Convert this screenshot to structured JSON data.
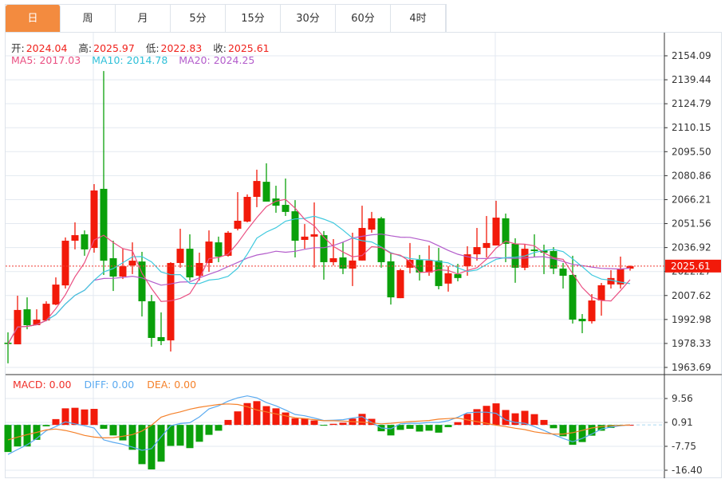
{
  "tabs": [
    "日",
    "周",
    "月",
    "5分",
    "15分",
    "30分",
    "60分",
    "4时"
  ],
  "active_tab": 0,
  "ohlc_header": {
    "open_label": "开:",
    "open": "2024.04",
    "high_label": "高:",
    "high": "2025.97",
    "low_label": "低:",
    "low": "2022.83",
    "close_label": "收:",
    "close": "2025.61"
  },
  "ma_header": {
    "ma5": "MA5: 2017.03",
    "ma10": "MA10: 2014.78",
    "ma20": "MA20: 2024.25"
  },
  "macd_header": {
    "macd": "MACD: 0.00",
    "diff": "DIFF: 0.00",
    "dea": "DEA: 0.00"
  },
  "colors": {
    "up": "#f21a0a",
    "down": "#0aa00a",
    "ma5": "#ea4f82",
    "ma10": "#3fc9de",
    "ma20": "#b35ccb",
    "diff": "#5aaaf0",
    "dea": "#f5812a",
    "accent": "#f38b3f"
  },
  "chart_data": {
    "type": "candlestick",
    "price_axis_ticks": [
      "2154.09",
      "2139.44",
      "2124.79",
      "2110.15",
      "2095.50",
      "2080.86",
      "2066.21",
      "2051.56",
      "2036.92",
      "2022.27",
      "2007.62",
      "1992.98",
      "1978.33",
      "1963.69"
    ],
    "ylim": [
      1963.69,
      2154.09
    ],
    "current_price": "2025.61",
    "candles": [
      [
        1978.8,
        1985.1,
        1966.2,
        1978.0
      ],
      [
        1977.8,
        2007.5,
        1977.8,
        1998.8
      ],
      [
        1999.2,
        2006.5,
        1987.0,
        1989.5
      ],
      [
        1989.5,
        1999.2,
        1989.5,
        1992.9
      ],
      [
        1992.4,
        2004.1,
        1991.9,
        2002.6
      ],
      [
        2002.1,
        2018.7,
        2001.7,
        2014.3
      ],
      [
        2013.8,
        2043.1,
        2011.9,
        2041.1
      ],
      [
        2041.1,
        2052.3,
        2035.8,
        2044.5
      ],
      [
        2045.0,
        2047.4,
        2031.9,
        2035.8
      ],
      [
        2036.7,
        2075.7,
        2033.8,
        2071.8
      ],
      [
        2072.8,
        2144.8,
        2020.2,
        2028.9
      ],
      [
        2030.4,
        2041.1,
        2010.4,
        2019.2
      ],
      [
        2019.2,
        2036.2,
        2017.7,
        2025.5
      ],
      [
        2026.0,
        2040.1,
        2020.7,
        2028.9
      ],
      [
        2028.4,
        2034.3,
        1994.8,
        2004.1
      ],
      [
        2004.1,
        2008.0,
        1976.3,
        1981.7
      ],
      [
        1982.2,
        1997.3,
        1977.3,
        1979.8
      ],
      [
        1980.2,
        2028.0,
        1973.4,
        2027.5
      ],
      [
        2027.5,
        2048.4,
        2024.6,
        2036.2
      ],
      [
        2036.2,
        2045.0,
        2016.8,
        2018.7
      ],
      [
        2019.7,
        2033.8,
        2016.8,
        2027.5
      ],
      [
        2027.5,
        2047.4,
        2022.1,
        2040.6
      ],
      [
        2040.1,
        2043.6,
        2028.0,
        2031.4
      ],
      [
        2031.9,
        2047.0,
        2031.4,
        2046.0
      ],
      [
        2048.4,
        2070.8,
        2047.4,
        2053.3
      ],
      [
        2052.8,
        2069.4,
        2052.3,
        2067.9
      ],
      [
        2067.9,
        2084.5,
        2061.6,
        2077.6
      ],
      [
        2077.1,
        2088.4,
        2065.0,
        2065.0
      ],
      [
        2066.9,
        2074.7,
        2058.2,
        2062.5
      ],
      [
        2063.0,
        2079.1,
        2056.2,
        2058.7
      ],
      [
        2059.1,
        2065.9,
        2030.9,
        2041.1
      ],
      [
        2041.6,
        2051.3,
        2036.2,
        2043.6
      ],
      [
        2043.6,
        2064.5,
        2024.6,
        2045.0
      ],
      [
        2044.5,
        2047.0,
        2017.3,
        2028.0
      ],
      [
        2028.0,
        2042.1,
        2026.0,
        2030.4
      ],
      [
        2030.9,
        2040.1,
        2020.7,
        2024.1
      ],
      [
        2024.1,
        2046.0,
        2013.4,
        2029.0
      ],
      [
        2029.0,
        2062.5,
        2029.0,
        2048.9
      ],
      [
        2047.9,
        2058.7,
        2046.0,
        2054.8
      ],
      [
        2054.8,
        2055.7,
        2024.6,
        2028.0
      ],
      [
        2028.5,
        2033.3,
        2002.1,
        2006.5
      ],
      [
        2006.0,
        2024.0,
        2006.0,
        2023.1
      ],
      [
        2024.6,
        2039.7,
        2021.2,
        2029.4
      ],
      [
        2029.4,
        2032.4,
        2016.8,
        2021.7
      ],
      [
        2021.7,
        2038.2,
        2019.7,
        2029.0
      ],
      [
        2029.0,
        2036.7,
        2011.4,
        2013.4
      ],
      [
        2014.9,
        2025.5,
        2010.0,
        2021.2
      ],
      [
        2020.7,
        2027.0,
        2016.3,
        2018.3
      ],
      [
        2025.5,
        2037.7,
        2019.7,
        2032.8
      ],
      [
        2032.8,
        2048.9,
        2028.9,
        2037.2
      ],
      [
        2036.7,
        2056.2,
        2030.9,
        2039.7
      ],
      [
        2038.2,
        2065.5,
        2038.2,
        2055.2
      ],
      [
        2054.8,
        2057.7,
        2028.0,
        2039.2
      ],
      [
        2039.2,
        2042.6,
        2015.4,
        2024.6
      ],
      [
        2024.6,
        2038.7,
        2023.1,
        2036.2
      ],
      [
        2035.7,
        2045.0,
        2030.9,
        2034.8
      ],
      [
        2035.2,
        2038.7,
        2020.7,
        2033.8
      ],
      [
        2034.8,
        2037.2,
        2020.7,
        2024.1
      ],
      [
        2024.1,
        2027.5,
        2011.9,
        2019.7
      ],
      [
        2020.2,
        2031.9,
        1990.5,
        1992.9
      ],
      [
        1993.4,
        1996.3,
        1984.6,
        1991.9
      ],
      [
        1991.9,
        2008.5,
        1990.5,
        2004.6
      ],
      [
        2004.6,
        2015.3,
        1995.3,
        2013.9
      ],
      [
        2014.4,
        2023.1,
        2011.9,
        2018.3
      ],
      [
        2014.4,
        2031.4,
        2011.9,
        2024.1
      ],
      [
        2024.04,
        2025.97,
        2022.83,
        2025.61
      ]
    ],
    "macd_axis_ticks": [
      "9.56",
      "0.91",
      "-7.75",
      "-16.40"
    ],
    "macd_ylim": [
      -16.4,
      9.56
    ],
    "macd_hist": [
      -9.8,
      -7.8,
      -7.8,
      -5.4,
      -0.5,
      2.1,
      6.0,
      6.2,
      5.6,
      5.8,
      -1.4,
      -3.8,
      -5.6,
      -9.0,
      -14.2,
      -16.1,
      -13.3,
      -7.6,
      -7.5,
      -8.4,
      -6.1,
      -3.6,
      -2.1,
      1.8,
      4.9,
      7.9,
      8.6,
      6.8,
      6.0,
      4.5,
      2.4,
      2.4,
      1.6,
      -0.2,
      0.4,
      0.8,
      2.3,
      4.0,
      2.2,
      -2.3,
      -3.8,
      -1.8,
      -1.4,
      -2.4,
      -2.1,
      -2.8,
      -0.8,
      1.0,
      4.0,
      5.7,
      6.9,
      7.8,
      5.4,
      4.2,
      5.1,
      3.9,
      1.8,
      -1.2,
      -4.1,
      -7.2,
      -6.2,
      -3.9,
      -2.1,
      -1.1,
      -0.3,
      0.0
    ],
    "diff": [
      -10.7,
      -8.9,
      -7.2,
      -4.9,
      -2.1,
      -0.6,
      1.1,
      0.4,
      -0.3,
      -1.1,
      -5.4,
      -6.3,
      -7.0,
      -8.0,
      -9.2,
      -8.6,
      -4.3,
      -0.3,
      0.5,
      0.8,
      2.9,
      5.8,
      6.9,
      8.6,
      9.8,
      10.5,
      9.8,
      8.1,
      6.9,
      5.4,
      3.8,
      3.3,
      2.5,
      1.6,
      1.7,
      1.9,
      2.5,
      3.0,
      0.9,
      -1.1,
      -1.4,
      0.4,
      0.6,
      0.6,
      0.9,
      0.9,
      1.5,
      2.8,
      4.4,
      4.6,
      4.6,
      4.2,
      1.8,
      0.9,
      0.6,
      -0.6,
      -2.0,
      -3.5,
      -4.9,
      -6.1,
      -4.9,
      -3.3,
      -1.5,
      -0.8,
      -0.3,
      0.0
    ],
    "dea": [
      -5.4,
      -4.4,
      -3.5,
      -2.7,
      -1.8,
      -1.5,
      -2.0,
      -2.8,
      -3.8,
      -4.4,
      -4.7,
      -4.6,
      -4.1,
      -3.5,
      -2.2,
      -0.1,
      2.8,
      3.9,
      4.7,
      5.7,
      6.4,
      6.9,
      7.4,
      7.6,
      7.4,
      6.6,
      5.4,
      4.7,
      4.0,
      3.3,
      2.6,
      2.3,
      1.9,
      1.5,
      1.5,
      1.4,
      1.2,
      1.0,
      0.7,
      0.4,
      0.6,
      0.9,
      1.2,
      1.4,
      1.6,
      2.1,
      2.3,
      2.5,
      1.8,
      1.2,
      0.6,
      -0.1,
      -0.6,
      -1.2,
      -1.7,
      -2.5,
      -3.0,
      -3.3,
      -3.3,
      -2.8,
      -2.0,
      -1.1,
      -0.6,
      -0.3,
      -0.2,
      0.0
    ]
  }
}
